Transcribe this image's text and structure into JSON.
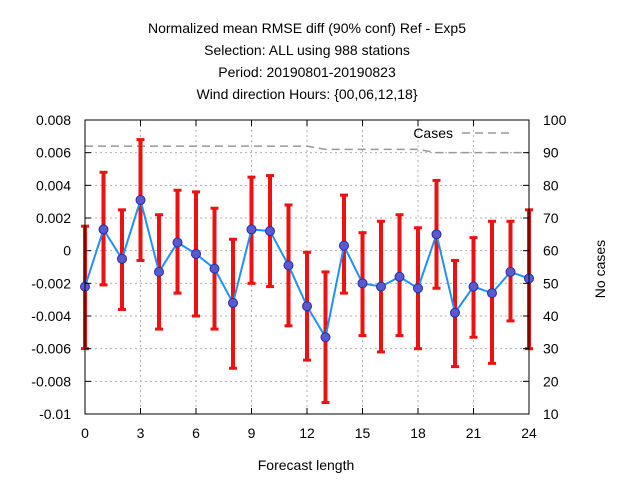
{
  "chart_data": {
    "type": "line",
    "title_lines": [
      "Normalized mean RMSE diff (90% conf) Ref - Exp5",
      "Selection: ALL using   988 stations",
      "Period: 20190801-20190823",
      "Wind direction    Hours: {00,06,12,18}"
    ],
    "xlabel": "Forecast length",
    "ylabel_right": "No cases",
    "xlim": [
      0,
      24
    ],
    "ylim": [
      -0.01,
      0.008
    ],
    "y2lim": [
      10,
      100
    ],
    "x_ticks": [
      0,
      3,
      6,
      9,
      12,
      15,
      18,
      21,
      24
    ],
    "y_ticks": [
      -0.01,
      -0.008,
      -0.006,
      -0.004,
      -0.002,
      0,
      0.002,
      0.004,
      0.006,
      0.008
    ],
    "y_tick_labels": [
      "-0.01",
      "-0.008",
      "-0.006",
      "-0.004",
      "-0.002",
      "0",
      "0.002",
      "0.004",
      "0.006",
      "0.008"
    ],
    "y2_ticks": [
      10,
      20,
      30,
      40,
      50,
      60,
      70,
      80,
      90,
      100
    ],
    "grid": true,
    "colors": {
      "line": "#1e90ff",
      "errorbar": "#ee1111",
      "marker": "#5a5ad0",
      "cases": "#999999",
      "grid": "#b0b0b0"
    },
    "series": [
      {
        "x": [
          0,
          1,
          2,
          3,
          4,
          5,
          6,
          7,
          8,
          9,
          10,
          11,
          12,
          13,
          14,
          15,
          16,
          17,
          18,
          19,
          20,
          21,
          22,
          23,
          24
        ],
        "values": [
          -0.0022,
          0.0013,
          -0.0005,
          0.0031,
          -0.0013,
          0.0005,
          -0.0002,
          -0.0011,
          -0.0032,
          0.0013,
          0.0012,
          -0.0009,
          -0.0034,
          -0.0053,
          0.0003,
          -0.002,
          -0.0022,
          -0.0016,
          -0.0023,
          0.001,
          -0.0038,
          -0.0022,
          -0.0026,
          -0.0013,
          -0.0017
        ],
        "lower": [
          -0.006,
          -0.0021,
          -0.0036,
          -0.0006,
          -0.0048,
          -0.0026,
          -0.004,
          -0.0048,
          -0.0072,
          -0.002,
          -0.0022,
          -0.0046,
          -0.0067,
          -0.0093,
          -0.0026,
          -0.0052,
          -0.0062,
          -0.0052,
          -0.006,
          -0.0023,
          -0.0071,
          -0.0053,
          -0.0069,
          -0.0043,
          -0.006
        ],
        "upper": [
          0.0015,
          0.0048,
          0.0025,
          0.0068,
          0.0022,
          0.0037,
          0.0036,
          0.0026,
          0.0007,
          0.0045,
          0.0046,
          0.0028,
          -0.0001,
          -0.0013,
          0.0034,
          0.0011,
          0.0018,
          0.0022,
          0.0014,
          0.0043,
          -0.0006,
          0.0008,
          0.0018,
          0.0018,
          0.0025
        ]
      },
      {
        "name": "Cases",
        "axis": "right",
        "x": [
          0,
          1,
          2,
          3,
          4,
          5,
          6,
          7,
          8,
          9,
          10,
          11,
          12,
          13,
          14,
          15,
          16,
          17,
          18,
          19,
          20,
          21,
          22,
          23,
          24
        ],
        "values": [
          92,
          92,
          92,
          92,
          92,
          92,
          92,
          92,
          92,
          92,
          92,
          92,
          92,
          91,
          91,
          91,
          91,
          91,
          91,
          90,
          90,
          90,
          90,
          90,
          90
        ]
      }
    ]
  }
}
